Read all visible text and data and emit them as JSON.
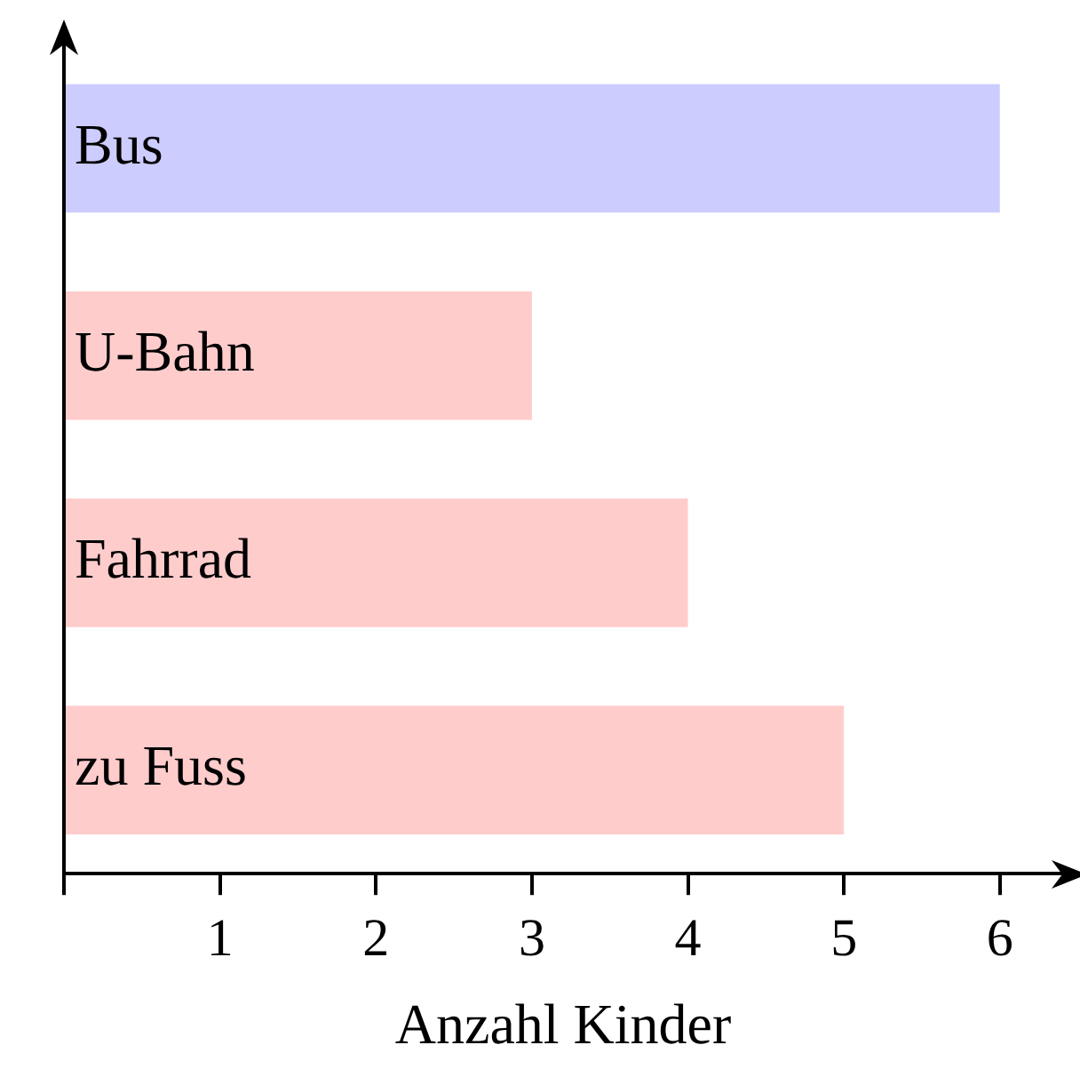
{
  "chart_data": {
    "type": "bar",
    "orientation": "horizontal",
    "xlabel": "Anzahl Kinder",
    "categories": [
      "Bus",
      "U-Bahn",
      "Fahrrad",
      "zu Fuss"
    ],
    "values": [
      6,
      3,
      4,
      5
    ],
    "colors": [
      "#ccccff",
      "#ffcccc",
      "#ffcccc",
      "#ffcccc"
    ],
    "xlim": [
      0,
      6.4
    ],
    "xticks": [
      {
        "value": 0,
        "label": null
      },
      1,
      2,
      3,
      4,
      5,
      6
    ]
  }
}
